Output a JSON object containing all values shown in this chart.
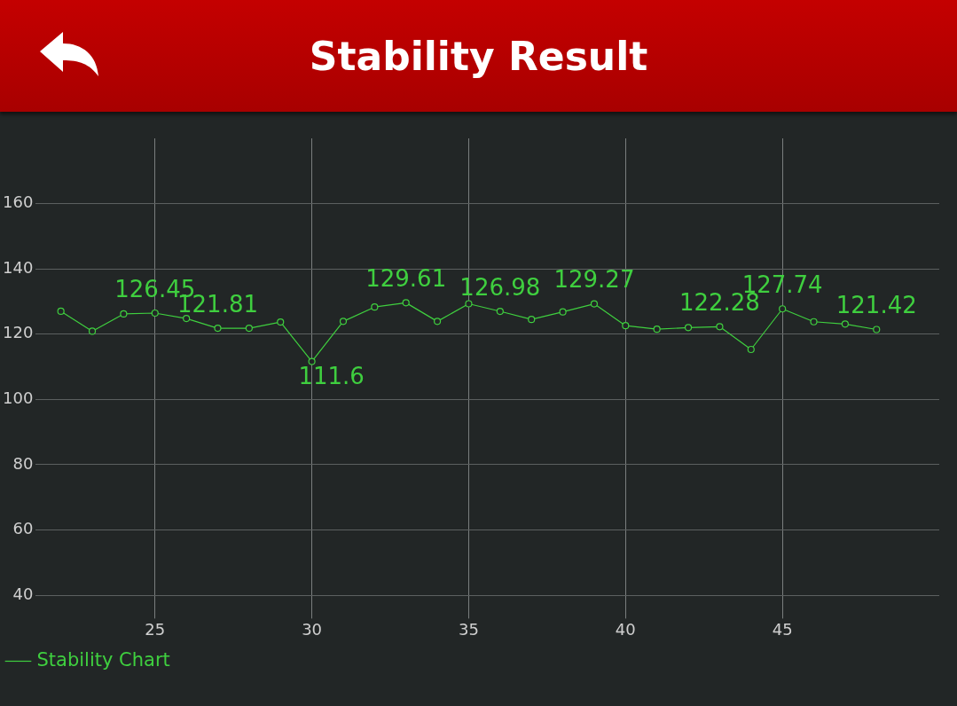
{
  "chart_data": {
    "type": "line",
    "title": "Stability Result",
    "x": [
      22,
      23,
      24,
      25,
      26,
      27,
      28,
      29,
      30,
      31,
      32,
      33,
      34,
      35,
      36,
      37,
      38,
      39,
      40,
      41,
      42,
      43,
      44,
      45,
      46,
      47,
      48
    ],
    "series": [
      {
        "name": "Stability Chart",
        "color": "#3fcf3f",
        "values": [
          127,
          120.9,
          126.2,
          126.45,
          124.8,
          121.81,
          121.8,
          123.7,
          111.6,
          123.9,
          128.3,
          129.61,
          123.9,
          129.3,
          126.98,
          124.5,
          126.8,
          129.27,
          122.6,
          121.5,
          122.0,
          122.28,
          115.3,
          127.74,
          123.8,
          123.1,
          121.42
        ],
        "value_labels": [
          null,
          null,
          null,
          "126.45",
          null,
          "121.81",
          null,
          null,
          "111.6",
          null,
          null,
          "129.61",
          null,
          null,
          "126.98",
          null,
          null,
          "129.27",
          null,
          null,
          null,
          "122.28",
          null,
          "127.74",
          null,
          null,
          "121.42"
        ]
      }
    ],
    "xlim": [
      21.2,
      50
    ],
    "xticks": [
      25,
      30,
      35,
      40,
      45
    ],
    "ylim": [
      35,
      180
    ],
    "yticks": [
      40,
      60,
      80,
      100,
      120,
      140,
      160
    ],
    "grid": true,
    "legend": "bottom left",
    "marker": "circle",
    "line_style": "solid"
  }
}
